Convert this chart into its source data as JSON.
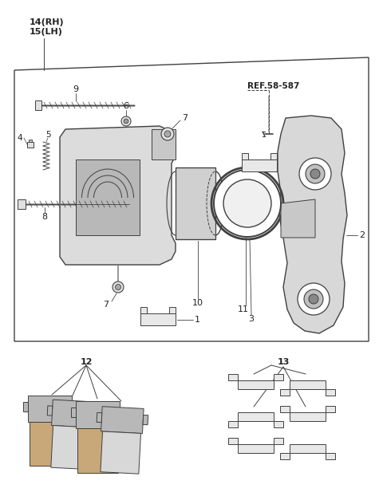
{
  "bg_color": "#ffffff",
  "lc": "#404040",
  "tc": "#222222",
  "label_14_15": "14(RH)\n15(LH)",
  "ref_label": "REF.58-587",
  "figsize": [
    4.8,
    6.32
  ],
  "dpi": 100
}
